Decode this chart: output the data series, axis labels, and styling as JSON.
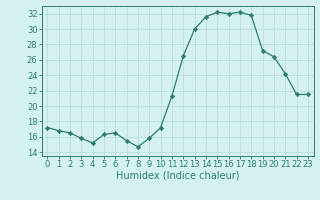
{
  "x": [
    0,
    1,
    2,
    3,
    4,
    5,
    6,
    7,
    8,
    9,
    10,
    11,
    12,
    13,
    14,
    15,
    16,
    17,
    18,
    19,
    20,
    21,
    22,
    23
  ],
  "y": [
    17.2,
    16.8,
    16.5,
    15.8,
    15.2,
    16.3,
    16.5,
    15.5,
    14.7,
    15.8,
    17.2,
    21.3,
    26.5,
    30.0,
    31.6,
    32.2,
    32.0,
    32.2,
    31.8,
    27.2,
    26.4,
    24.2,
    21.5,
    21.5
  ],
  "line_color": "#2e7d6e",
  "marker": "D",
  "marker_size": 2.2,
  "bg_color": "#d4f0f0",
  "grid_color": "#b8dada",
  "xlabel": "Humidex (Indice chaleur)",
  "xlim": [
    -0.5,
    23.5
  ],
  "ylim": [
    13.5,
    33
  ],
  "yticks": [
    14,
    16,
    18,
    20,
    22,
    24,
    26,
    28,
    30,
    32
  ],
  "xticks": [
    0,
    1,
    2,
    3,
    4,
    5,
    6,
    7,
    8,
    9,
    10,
    11,
    12,
    13,
    14,
    15,
    16,
    17,
    18,
    19,
    20,
    21,
    22,
    23
  ],
  "tick_color": "#2e7d6e",
  "axis_color": "#2e7d6e",
  "label_fontsize": 7.0,
  "tick_fontsize": 6.0
}
